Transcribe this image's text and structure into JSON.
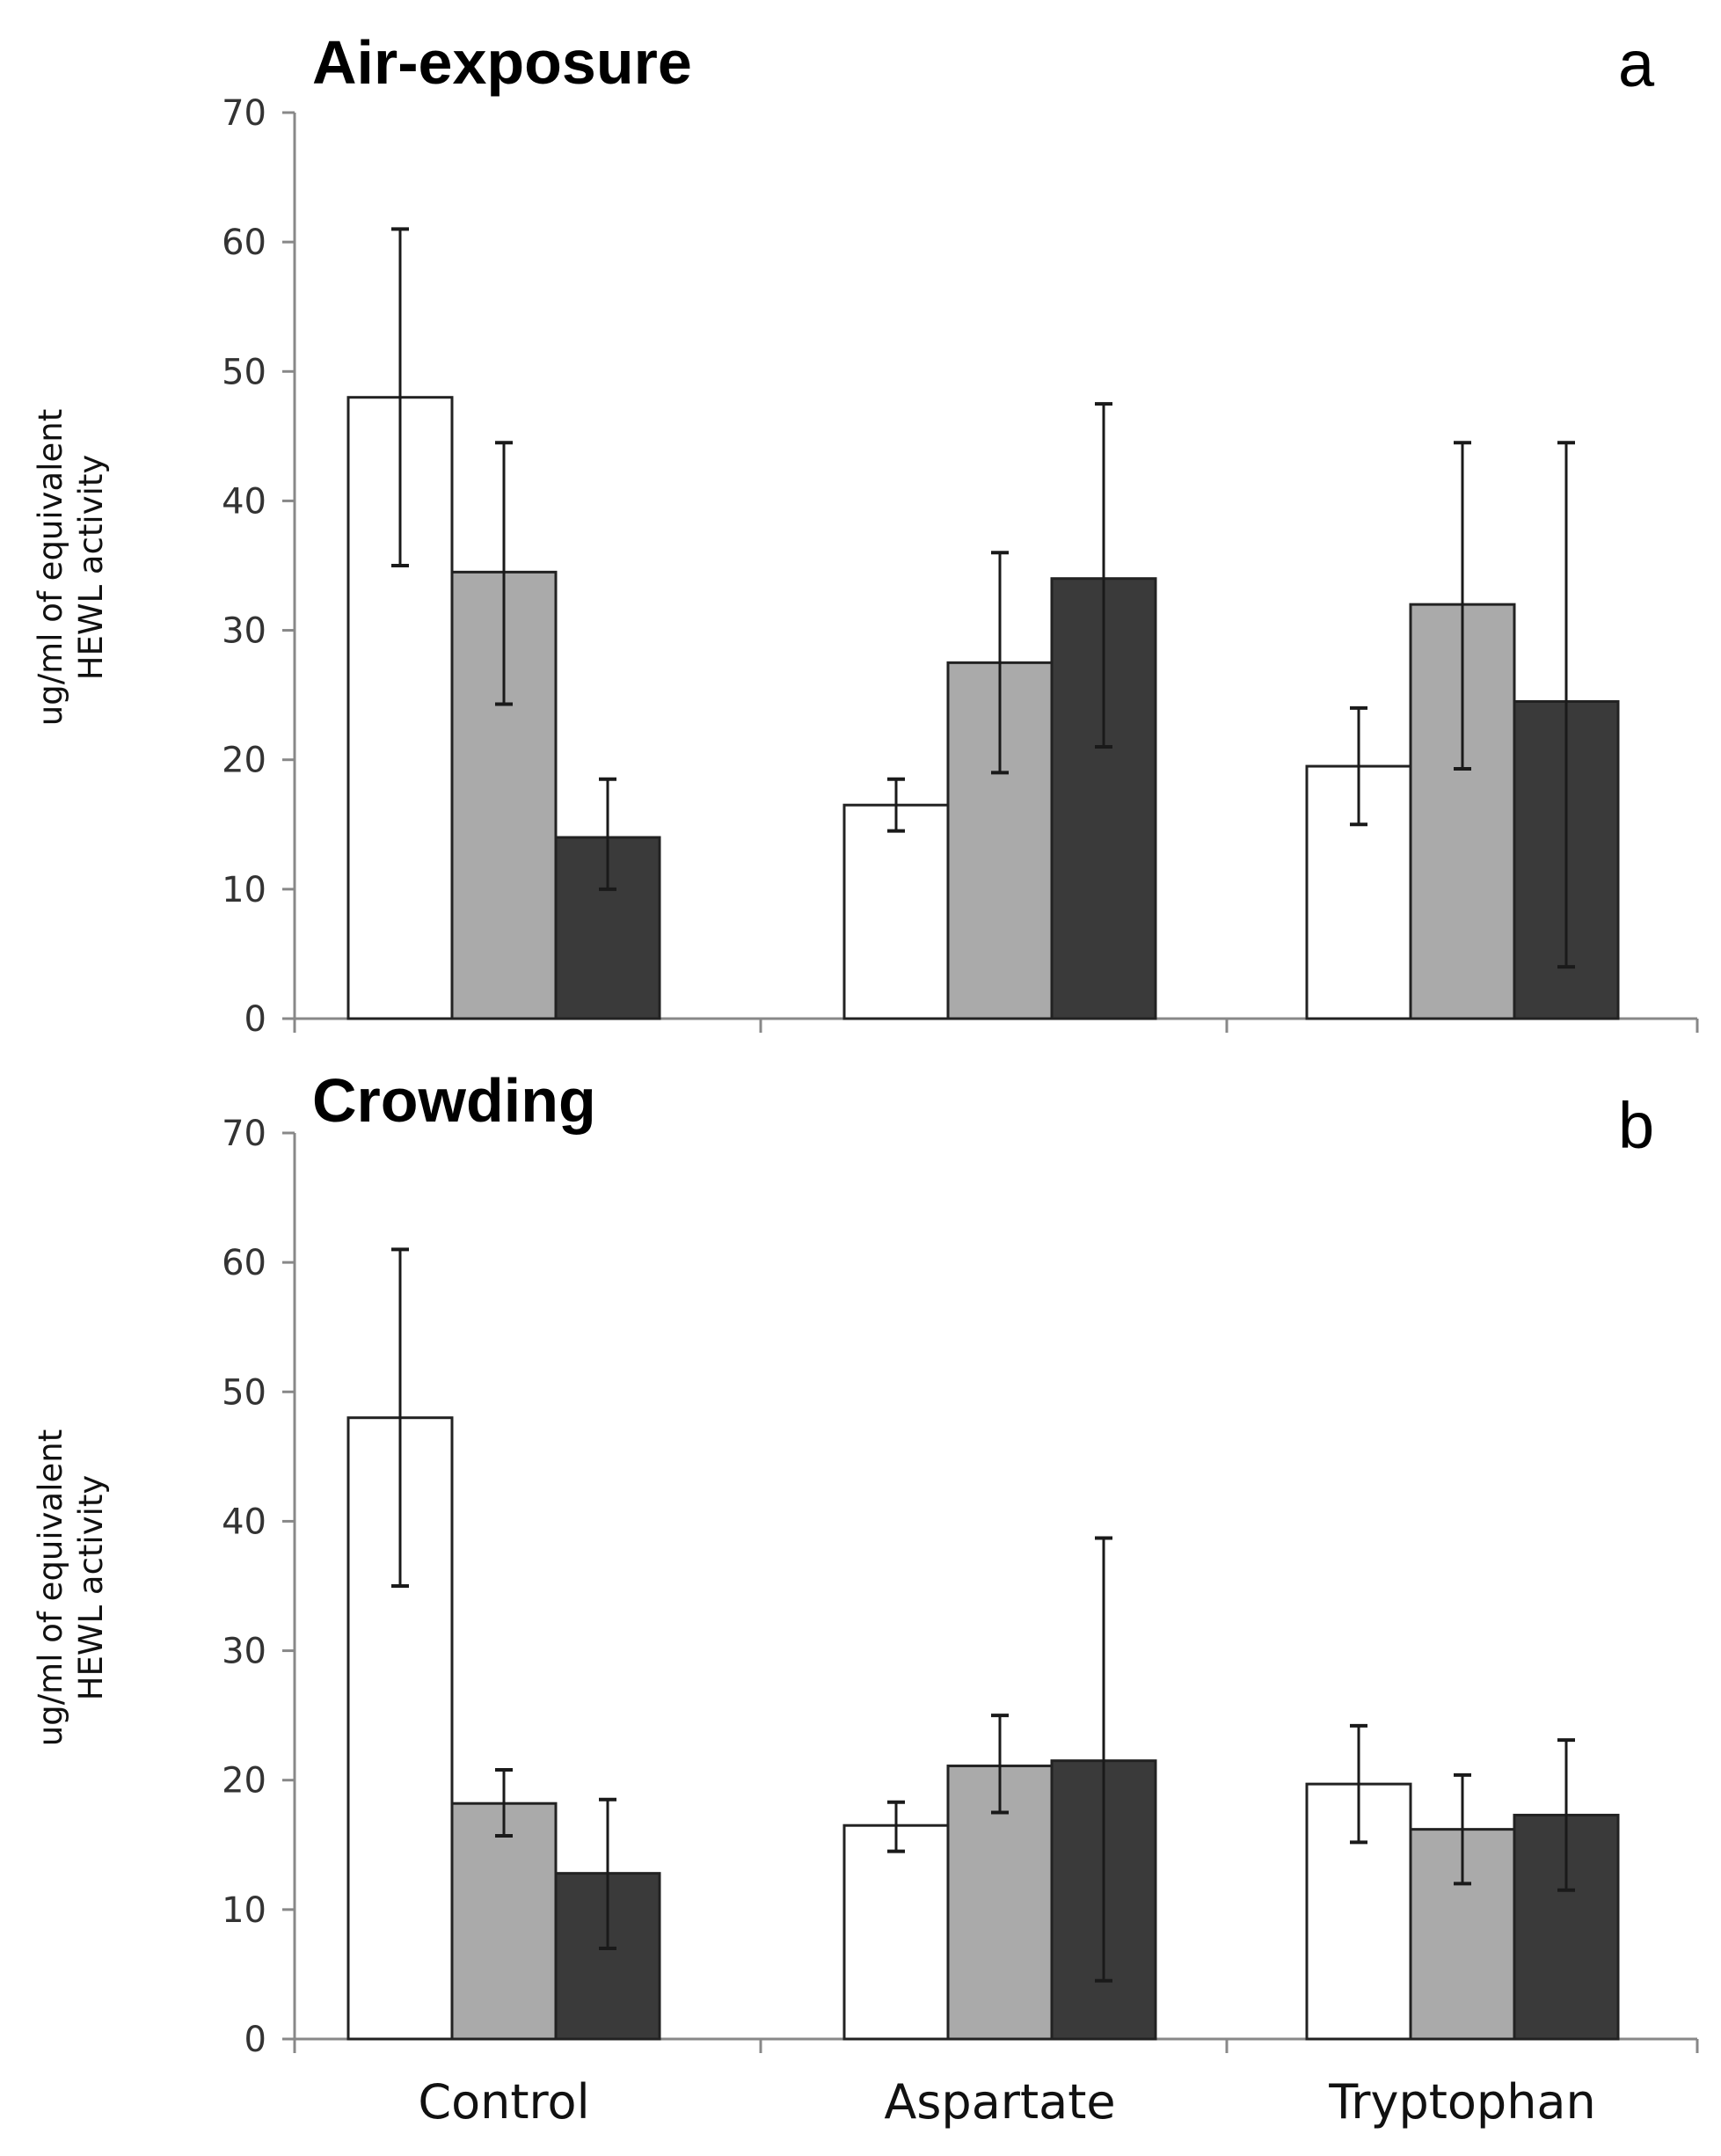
{
  "chart_data": [
    {
      "type": "bar",
      "panel_letter": "a",
      "title": "Air-exposure",
      "ylabel_lines": [
        "ug/ml of equivalent",
        "HEWL activity"
      ],
      "xlabel": "",
      "ylim": [
        0,
        70
      ],
      "yticks": [
        0,
        10,
        20,
        30,
        40,
        50,
        60,
        70
      ],
      "categories": [
        "Control",
        "Aspartate",
        "Tryptophan"
      ],
      "show_category_labels": false,
      "colors": {
        "series_1": "#ffffff",
        "series_2": "#aaaaaa",
        "series_3": "#3a3a3a",
        "stroke": "#222222",
        "axis": "#888888",
        "error_bar": "#1a1a1a"
      },
      "series": [
        {
          "name": "series_1",
          "values": [
            48,
            16.5,
            19.5
          ],
          "error_low": [
            35,
            14.5,
            15
          ],
          "error_high": [
            61,
            18.5,
            24
          ]
        },
        {
          "name": "series_2",
          "values": [
            34.5,
            27.5,
            32
          ],
          "error_low": [
            24.3,
            19,
            19.3
          ],
          "error_high": [
            44.5,
            36,
            44.5
          ]
        },
        {
          "name": "series_3",
          "values": [
            14,
            34,
            24.5
          ],
          "error_low": [
            10,
            21,
            4
          ],
          "error_high": [
            18.5,
            47.5,
            44.5
          ]
        }
      ]
    },
    {
      "type": "bar",
      "panel_letter": "b",
      "title": "Crowding",
      "ylabel_lines": [
        "ug/ml of equivalent",
        "HEWL activity"
      ],
      "xlabel": "",
      "ylim": [
        0,
        70
      ],
      "yticks": [
        0,
        10,
        20,
        30,
        40,
        50,
        60,
        70
      ],
      "categories": [
        "Control",
        "Aspartate",
        "Tryptophan"
      ],
      "show_category_labels": true,
      "colors": {
        "series_1": "#ffffff",
        "series_2": "#aaaaaa",
        "series_3": "#3a3a3a",
        "stroke": "#222222",
        "axis": "#888888",
        "error_bar": "#1a1a1a"
      },
      "series": [
        {
          "name": "series_1",
          "values": [
            48,
            16.5,
            19.7
          ],
          "error_low": [
            35,
            14.5,
            15.2
          ],
          "error_high": [
            61,
            18.3,
            24.2
          ]
        },
        {
          "name": "series_2",
          "values": [
            18.2,
            21.1,
            16.2
          ],
          "error_low": [
            15.7,
            17.5,
            12
          ],
          "error_high": [
            20.8,
            25,
            20.4
          ]
        },
        {
          "name": "series_3",
          "values": [
            12.8,
            21.5,
            17.3
          ],
          "error_low": [
            7,
            4.5,
            11.5
          ],
          "error_high": [
            18.5,
            38.7,
            23.1
          ]
        }
      ]
    }
  ]
}
